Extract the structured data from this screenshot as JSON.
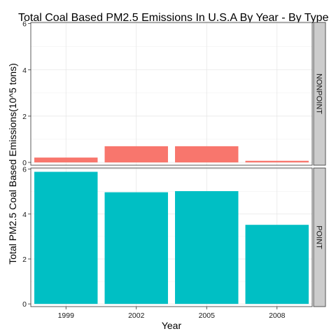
{
  "chart_data": {
    "type": "bar",
    "title": "Total Coal Based PM2.5 Emissions In U.S.A By Year - By Type",
    "xlabel": "Year",
    "ylabel": "Total PM2.5 Coal Based Emissions(10^5 tons)",
    "categories": [
      "1999",
      "2002",
      "2005",
      "2008"
    ],
    "ylim": [
      0,
      6
    ],
    "yticks": [
      0,
      2,
      4,
      6
    ],
    "facets": [
      {
        "name": "NONPOINT",
        "color": "#F8766D",
        "values": [
          0.21,
          0.7,
          0.7,
          0.07
        ]
      },
      {
        "name": "POINT",
        "color": "#00BFC4",
        "values": [
          5.88,
          4.97,
          5.02,
          3.52
        ]
      }
    ],
    "grid": true,
    "legend": "none"
  }
}
